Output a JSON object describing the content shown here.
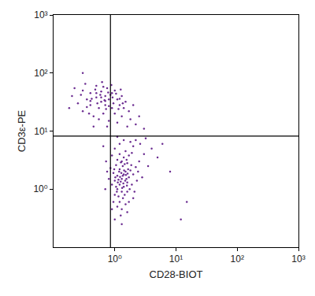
{
  "chart_data": {
    "type": "scatter",
    "x_label": "CD28-BIOT",
    "y_label": "CD3ε-PE",
    "log": true,
    "grid": false,
    "color": "#6b2c91",
    "marker": "circle",
    "xlim": [
      0.1,
      1000
    ],
    "ylim": [
      0.1,
      1000
    ],
    "xticks": [
      {
        "value": 1,
        "label": "10⁰"
      },
      {
        "value": 10,
        "label": "10¹"
      },
      {
        "value": 100,
        "label": "10²"
      },
      {
        "value": 1000,
        "label": "10³"
      }
    ],
    "yticks": [
      {
        "value": 1,
        "label": "10⁰"
      },
      {
        "value": 10,
        "label": "10¹"
      },
      {
        "value": 100,
        "label": "10²"
      },
      {
        "value": 1000,
        "label": "10³"
      }
    ],
    "gates": {
      "x": 0.85,
      "y": 8.2
    },
    "x": [
      0.2,
      0.25,
      0.3,
      0.3,
      0.35,
      0.4,
      0.4,
      0.45,
      0.5,
      0.5,
      0.55,
      0.6,
      0.6,
      0.65,
      0.7,
      0.7,
      0.75,
      0.8,
      0.8,
      0.85,
      0.9,
      0.95,
      1.0,
      1.0,
      1.1,
      1.1,
      1.2,
      1.3,
      1.3,
      1.4,
      1.5,
      1.6,
      1.7,
      1.8,
      2.0,
      2.2,
      2.5,
      3.0,
      0.18,
      0.22,
      0.28,
      0.33,
      0.38,
      0.42,
      0.48,
      0.52,
      0.58,
      0.62,
      0.68,
      0.72,
      0.78,
      0.88,
      0.92,
      1.05,
      1.15,
      1.25,
      1.35,
      0.3,
      0.45,
      0.55,
      0.75,
      0.65,
      0.5,
      0.4,
      0.35,
      0.6,
      0.7,
      0.8,
      0.9,
      1.2,
      1.3,
      1.2,
      1.4,
      1.1,
      1.5,
      1.0,
      1.6,
      1.2,
      1.3,
      1.4,
      1.1,
      1.7,
      1.25,
      1.35,
      0.95,
      1.45,
      1.55,
      1.15,
      1.05,
      1.8,
      1.3,
      1.2,
      1.6,
      0.9,
      1.0,
      1.9,
      1.4,
      1.2,
      1.6,
      2.0,
      1.1,
      0.85,
      1.5,
      1.3,
      2.2,
      1.7,
      1.0,
      1.5,
      2.5,
      2.0,
      1.2,
      1.8,
      3.0,
      2.6,
      1.4,
      0.9,
      0.8,
      0.75,
      1.1,
      1.25,
      1.6,
      0.95,
      2.1,
      2.3,
      1.75,
      1.65,
      1.45,
      1.35,
      1.15,
      1.05,
      1.28,
      1.38,
      1.22,
      1.48,
      1.18,
      1.32,
      1.42,
      1.12,
      1.52,
      1.02,
      0.98,
      1.58,
      1.62,
      1.08,
      1.36,
      1.26,
      1.56,
      1.86,
      2.4,
      3.5,
      4.0,
      2.8,
      0.7,
      0.72,
      1.9,
      2.2,
      3.2,
      1.1,
      0.65,
      5.0,
      1.3,
      1.0,
      0.9,
      1.7,
      2.0,
      15,
      12,
      8,
      6
    ],
    "values": [
      40,
      30,
      50,
      22,
      35,
      45,
      28,
      18,
      60,
      38,
      25,
      32,
      48,
      20,
      40,
      28,
      55,
      35,
      15,
      42,
      25,
      30,
      50,
      20,
      35,
      14,
      28,
      40,
      18,
      25,
      32,
      12,
      22,
      16,
      28,
      13,
      18,
      11,
      25,
      55,
      42,
      65,
      20,
      36,
      52,
      30,
      42,
      70,
      34,
      24,
      46,
      62,
      38,
      44,
      24,
      52,
      30,
      100,
      12,
      16,
      12,
      58,
      45,
      33,
      26,
      38,
      33,
      27,
      45,
      36,
      1.5,
      1.2,
      1.8,
      1.0,
      2.0,
      1.4,
      1.3,
      2.2,
      0.9,
      1.1,
      1.7,
      1.6,
      1.35,
      2.5,
      1.9,
      0.8,
      1.5,
      0.75,
      2.6,
      2.1,
      3.0,
      0.6,
      0.9,
      1.2,
      0.8,
      1.2,
      3.5,
      4.0,
      2.8,
      1.8,
      3.2,
      2.3,
      0.55,
      0.45,
      2.4,
      3.8,
      5.0,
      4.5,
      3.0,
      5.5,
      6.0,
      6.5,
      4.0,
      6.0,
      7.0,
      3.8,
      1.5,
      2.0,
      0.5,
      0.35,
      0.4,
      0.6,
      0.9,
      1.4,
      1.0,
      2.2,
      2.7,
      1.7,
      1.45,
      1.1,
      1.9,
      1.25,
      1.62,
      1.4,
      2.0,
      1.05,
      2.1,
      1.3,
      1.75,
      1.6,
      2.2,
      1.15,
      1.85,
      0.9,
      0.7,
      2.9,
      3.2,
      2.6,
      2.0,
      2.5,
      5.0,
      1.6,
      1.0,
      3.0,
      4.2,
      7.0,
      7.5,
      8.0,
      5.5,
      3.5,
      0.25,
      0.3,
      0.45,
      0.6,
      0.7,
      0.6,
      0.3,
      2,
      6
    ]
  }
}
